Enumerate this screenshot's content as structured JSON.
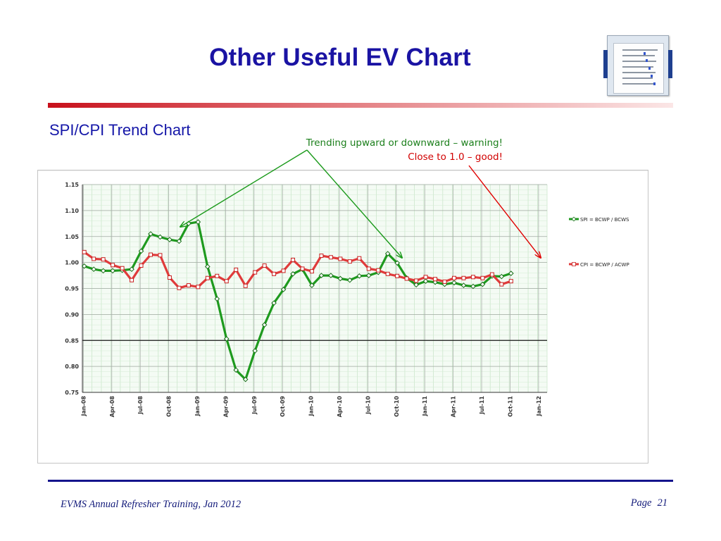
{
  "slide": {
    "title": "Other Useful EV Chart",
    "subtitle": "SPI/CPI Trend Chart",
    "footer_left": "EVMS Annual Refresher Training, Jan 2012",
    "page_label": "Page",
    "page_number": "21"
  },
  "annotations": {
    "trend_warning": "Trending upward or downward – warning!",
    "close_good": "Close to 1.0 – good!",
    "green_color": "#1b9a1b",
    "red_color": "#e00000"
  },
  "thumbnail": {
    "icon": "spreadsheet-thumbnail-icon"
  },
  "chart_data": {
    "type": "line",
    "title": "",
    "xlabel": "",
    "ylabel": "",
    "ylim": [
      0.75,
      1.15
    ],
    "yticks": [
      1.15,
      1.1,
      1.05,
      1.0,
      0.95,
      0.9,
      0.85,
      0.8,
      0.75
    ],
    "ytick_labels": [
      "1.15",
      "1.10",
      "1.05",
      "1.00",
      "0.95",
      "0.90",
      "0.85",
      "0.80",
      "0.75"
    ],
    "reference_line": 0.85,
    "grid": true,
    "x_months_span": 49,
    "x_ticks": [
      {
        "label": "Jan-08",
        "month": 0
      },
      {
        "label": "Apr-08",
        "month": 3
      },
      {
        "label": "Jul-08",
        "month": 6
      },
      {
        "label": "Oct-08",
        "month": 9
      },
      {
        "label": "Jan-09",
        "month": 12
      },
      {
        "label": "Apr-09",
        "month": 15
      },
      {
        "label": "Jul-09",
        "month": 18
      },
      {
        "label": "Oct-09",
        "month": 21
      },
      {
        "label": "Jan-10",
        "month": 24
      },
      {
        "label": "Apr-10",
        "month": 27
      },
      {
        "label": "Jul-10",
        "month": 30
      },
      {
        "label": "Oct-10",
        "month": 33
      },
      {
        "label": "Jan-11",
        "month": 36
      },
      {
        "label": "Apr-11",
        "month": 39
      },
      {
        "label": "Jul-11",
        "month": 42
      },
      {
        "label": "Oct-11",
        "month": 45
      },
      {
        "label": "Jan-12",
        "month": 48
      }
    ],
    "legend_position": "right",
    "series": [
      {
        "name": "SPI",
        "legend_label": "SPI =  BCWP / BCWS",
        "color": "#1e9a1e",
        "values": [
          0.993,
          0.987,
          0.984,
          0.984,
          0.985,
          0.987,
          1.022,
          1.055,
          1.049,
          1.044,
          1.041,
          1.075,
          1.078,
          0.992,
          0.93,
          0.853,
          0.793,
          0.775,
          0.83,
          0.88,
          0.922,
          0.948,
          0.978,
          0.987,
          0.956,
          0.975,
          0.975,
          0.969,
          0.966,
          0.974,
          0.975,
          0.981,
          1.017,
          0.999,
          0.97,
          0.957,
          0.964,
          0.962,
          0.958,
          0.961,
          0.956,
          0.954,
          0.958,
          0.974,
          0.973,
          0.979
        ]
      },
      {
        "name": "CPI",
        "legend_label": "CPI =  BCWP / ACWP",
        "color": "#e03b3b",
        "values": [
          1.02,
          1.007,
          1.006,
          0.995,
          0.989,
          0.966,
          0.994,
          1.015,
          1.014,
          0.971,
          0.951,
          0.956,
          0.953,
          0.97,
          0.974,
          0.964,
          0.986,
          0.955,
          0.981,
          0.994,
          0.978,
          0.984,
          1.005,
          0.988,
          0.983,
          1.013,
          1.01,
          1.007,
          1.002,
          1.008,
          0.988,
          0.985,
          0.978,
          0.974,
          0.969,
          0.965,
          0.972,
          0.968,
          0.963,
          0.97,
          0.97,
          0.972,
          0.97,
          0.977,
          0.958,
          0.964
        ]
      }
    ]
  }
}
